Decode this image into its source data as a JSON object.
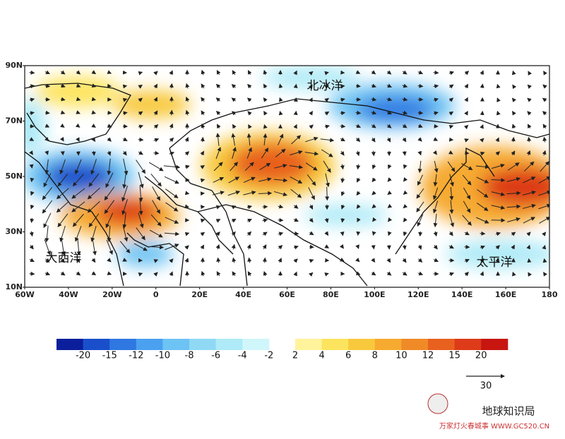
{
  "map": {
    "lat_labels": [
      "90N",
      "70N",
      "50N",
      "30N",
      "10N"
    ],
    "lon_labels": [
      "60W",
      "40W",
      "20W",
      "0",
      "20E",
      "40E",
      "60E",
      "80E",
      "100E",
      "120E",
      "140E",
      "160E",
      "180"
    ],
    "regions": [
      "北冰洋",
      "大西洋",
      "太平洋"
    ],
    "colorbar": {
      "negative": [
        -20,
        -15,
        -12,
        -10,
        -8,
        -6,
        -4,
        -2
      ],
      "positive": [
        2,
        4,
        6,
        8,
        10,
        12,
        15,
        20
      ],
      "negative_colors": [
        "#0b1f9c",
        "#1a4fcb",
        "#2f78e2",
        "#4ba1ef",
        "#6dc3f3",
        "#8fd9f5",
        "#aeeaf7",
        "#cff6fa"
      ],
      "positive_colors": [
        "#fff39c",
        "#fde45e",
        "#f8c93c",
        "#f6aa30",
        "#f08a27",
        "#e8611f",
        "#dd3b19",
        "#c81510"
      ]
    },
    "reference_vector": 30,
    "watermark": {
      "name": "地球知识局",
      "site": "万家灯火春城事 WWW.GC520.CN"
    }
  }
}
